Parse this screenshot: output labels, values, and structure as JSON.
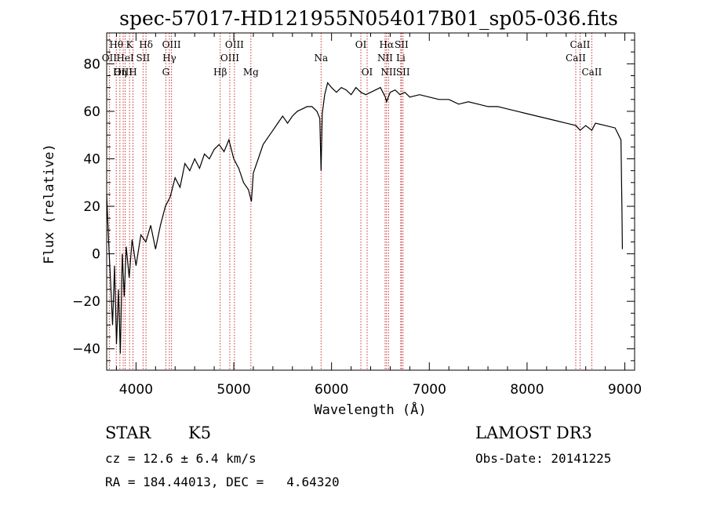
{
  "chart_data": {
    "type": "line",
    "title": "spec-57017-HD121955N054017B01_sp05-036.fits",
    "xlabel": "Wavelength (Å)",
    "ylabel": "Flux (relative)",
    "xlim": [
      3700,
      9100
    ],
    "ylim": [
      -49,
      93
    ],
    "xticks": [
      4000,
      5000,
      6000,
      7000,
      8000,
      9000
    ],
    "yticks": [
      -40,
      -20,
      0,
      20,
      40,
      60,
      80
    ],
    "grid": false,
    "series": [
      {
        "x": [
          3700,
          3720,
          3740,
          3760,
          3780,
          3800,
          3820,
          3840,
          3860,
          3880,
          3900,
          3930,
          3960,
          4000,
          4050,
          4100,
          4150,
          4200,
          4250,
          4300,
          4350,
          4400,
          4450,
          4500,
          4550,
          4600,
          4650,
          4700,
          4750,
          4800,
          4850,
          4900,
          4950,
          5000,
          5050,
          5100,
          5150,
          5180,
          5200,
          5250,
          5300,
          5350,
          5400,
          5450,
          5500,
          5550,
          5600,
          5650,
          5700,
          5750,
          5800,
          5850,
          5880,
          5893,
          5905,
          5930,
          5960,
          6000,
          6050,
          6100,
          6150,
          6200,
          6250,
          6300,
          6350,
          6400,
          6450,
          6500,
          6550,
          6563,
          6600,
          6650,
          6700,
          6750,
          6800,
          6900,
          7000,
          7100,
          7200,
          7300,
          7400,
          7500,
          7600,
          7700,
          7800,
          7900,
          8000,
          8100,
          8200,
          8300,
          8400,
          8500,
          8542,
          8600,
          8662,
          8700,
          8800,
          8900,
          8960,
          8970,
          8975
        ],
        "y": [
          25,
          5,
          -12,
          -30,
          -5,
          -38,
          -15,
          -42,
          0,
          -18,
          3,
          -10,
          6,
          -5,
          8,
          5,
          12,
          2,
          12,
          20,
          24,
          32,
          28,
          38,
          35,
          40,
          36,
          42,
          40,
          44,
          46,
          43,
          48,
          40,
          36,
          30,
          27,
          22,
          34,
          40,
          46,
          49,
          52,
          55,
          58,
          55,
          58,
          60,
          61,
          62,
          62,
          60,
          57,
          35,
          59,
          67,
          72,
          70,
          68,
          70,
          69,
          67,
          70,
          68,
          67,
          68,
          69,
          70,
          66,
          64,
          68,
          69,
          67,
          68,
          66,
          67,
          66,
          65,
          65,
          63,
          64,
          63,
          62,
          62,
          61,
          60,
          59,
          58,
          57,
          56,
          55,
          54,
          52,
          54,
          52,
          55,
          54,
          53,
          48,
          20,
          2
        ]
      }
    ],
    "line_markers": [
      {
        "name": "Hθ",
        "x": 3798,
        "row": 0
      },
      {
        "name": "K",
        "x": 3934,
        "row": 0
      },
      {
        "name": "Hδ",
        "x": 4102,
        "row": 0
      },
      {
        "name": "OII",
        "x": 3727,
        "row": 1
      },
      {
        "name": "HeI",
        "x": 3889,
        "row": 1
      },
      {
        "name": "SII",
        "x": 4072,
        "row": 1
      },
      {
        "name": "OIII",
        "x": 3869,
        "row": 2
      },
      {
        "name": "Hη",
        "x": 3835,
        "row": 2
      },
      {
        "name": "H",
        "x": 3969,
        "row": 2
      },
      {
        "name": "OIII",
        "x": 4363,
        "row": 0
      },
      {
        "name": "Hγ",
        "x": 4341,
        "row": 1
      },
      {
        "name": "G",
        "x": 4305,
        "row": 2
      },
      {
        "name": "OIII",
        "x": 5007,
        "row": 0
      },
      {
        "name": "OIII",
        "x": 4959,
        "row": 1
      },
      {
        "name": "Hβ",
        "x": 4861,
        "row": 2
      },
      {
        "name": "Mg",
        "x": 5175,
        "row": 2
      },
      {
        "name": "Na",
        "x": 5893,
        "row": 1
      },
      {
        "name": "OI",
        "x": 6300,
        "row": 0
      },
      {
        "name": "OI",
        "x": 6364,
        "row": 2
      },
      {
        "name": "Hα",
        "x": 6563,
        "row": 0
      },
      {
        "name": "SII",
        "x": 6716,
        "row": 0
      },
      {
        "name": "NII",
        "x": 6548,
        "row": 1
      },
      {
        "name": "Li",
        "x": 6708,
        "row": 1
      },
      {
        "name": "NII",
        "x": 6583,
        "row": 2
      },
      {
        "name": "SII",
        "x": 6731,
        "row": 2
      },
      {
        "name": "CaII",
        "x": 8542,
        "row": 0
      },
      {
        "name": "CaII",
        "x": 8498,
        "row": 1
      },
      {
        "name": "CaII",
        "x": 8662,
        "row": 2
      }
    ]
  },
  "info": {
    "class": "STAR",
    "subclass": "K5",
    "survey": "LAMOST DR3",
    "cz": "cz = 12.6 ± 6.4 km/s",
    "obs_date": "Obs-Date: 20141225",
    "radec": "RA = 184.44013, DEC =   4.64320"
  }
}
